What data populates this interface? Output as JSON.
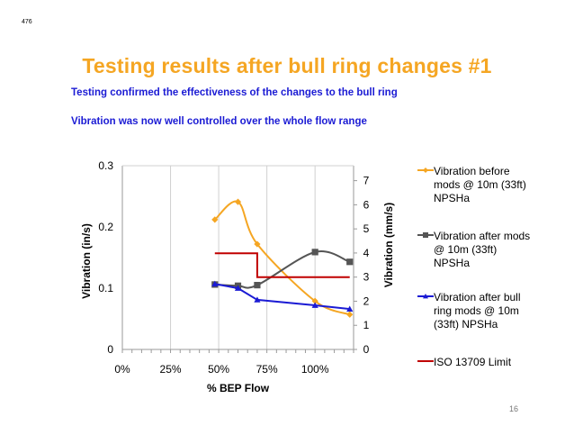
{
  "slide": {
    "corner_number": "476",
    "title": "Testing results after bull ring changes #1",
    "bullets": [
      "Testing confirmed the effectiveness of the changes to the bull ring",
      "Vibration was now well controlled over the whole flow range"
    ],
    "page_number": "16"
  },
  "chart_data": {
    "type": "line",
    "title": "",
    "xlabel": "% BEP Flow",
    "ylabel": "Vibration (in/s)",
    "y2label": "Vibration (mm/s)",
    "xlim": [
      0,
      1.2
    ],
    "ylim": [
      0,
      0.3
    ],
    "y2lim": [
      0,
      7.62
    ],
    "x_ticks": [
      "0%",
      "25%",
      "50%",
      "75%",
      "100%"
    ],
    "x_tick_values": [
      0,
      0.25,
      0.5,
      0.75,
      1.0
    ],
    "y_ticks": [
      "0",
      "0.1",
      "0.2",
      "0.3"
    ],
    "y_tick_values": [
      0,
      0.1,
      0.2,
      0.3
    ],
    "y2_ticks": [
      "0",
      "1",
      "2",
      "3",
      "4",
      "5",
      "6",
      "7"
    ],
    "y2_tick_values": [
      0,
      1,
      2,
      3,
      4,
      5,
      6,
      7
    ],
    "grid": "vertical",
    "legend_position": "right",
    "series": [
      {
        "name": "Vibration before mods @ 10m (33ft) NPSHa",
        "color": "#F5A623",
        "marker": "diamond",
        "smooth": true,
        "x": [
          0.48,
          0.6,
          0.7,
          1.0,
          1.18
        ],
        "y": [
          0.212,
          0.241,
          0.172,
          0.079,
          0.057
        ]
      },
      {
        "name": "Vibration after mods @ 10m (33ft) NPSHa",
        "color": "#555555",
        "marker": "square",
        "smooth": true,
        "x": [
          0.48,
          0.6,
          0.7,
          1.0,
          1.18
        ],
        "y": [
          0.106,
          0.104,
          0.105,
          0.159,
          0.143
        ]
      },
      {
        "name": "Vibration after bull ring mods @ 10m (33ft) NPSHa",
        "color": "#1B1BD4",
        "marker": "triangle",
        "smooth": false,
        "x": [
          0.48,
          0.6,
          0.7,
          1.0,
          1.18
        ],
        "y": [
          0.107,
          0.1,
          0.081,
          0.072,
          0.066
        ]
      },
      {
        "name": "ISO 13709 Limit",
        "color": "#C00000",
        "marker": "none",
        "smooth": false,
        "step": true,
        "x": [
          0.48,
          0.7,
          0.7,
          1.18
        ],
        "y": [
          0.157,
          0.157,
          0.118,
          0.118
        ]
      }
    ]
  }
}
